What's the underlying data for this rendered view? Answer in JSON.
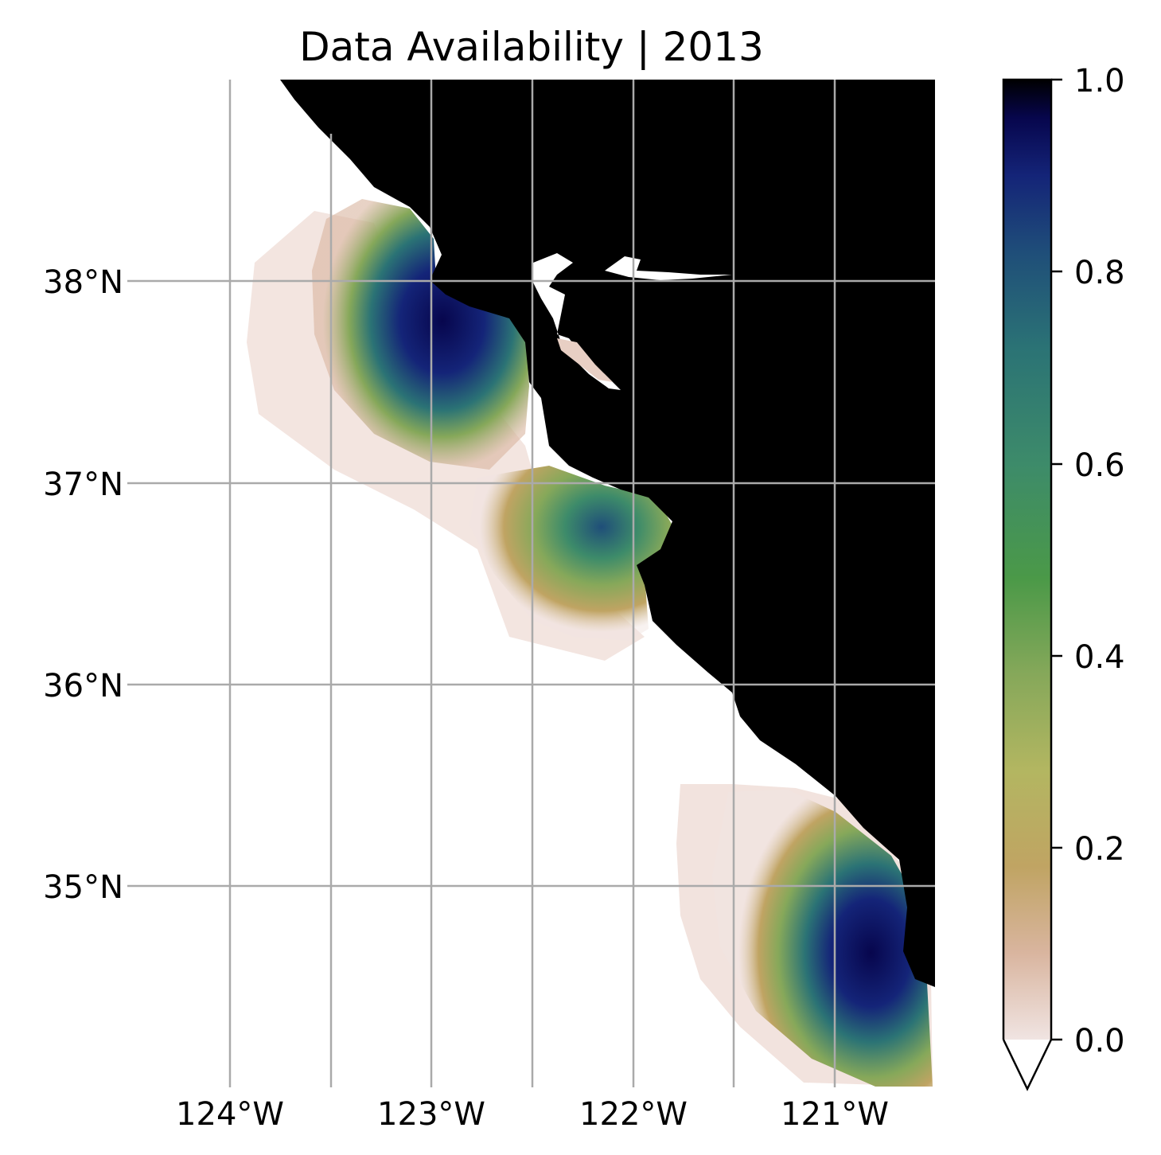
{
  "title": "Data Availability | 2013",
  "map": {
    "lon_range": [
      -124.5,
      -120.5
    ],
    "lat_range": [
      34.2,
      38.5
    ],
    "lon_ticks": [
      {
        "value": -124,
        "label": "124°W"
      },
      {
        "value": -123,
        "label": "123°W"
      },
      {
        "value": -122,
        "label": "122°W"
      },
      {
        "value": -121,
        "label": "121°W"
      }
    ],
    "lat_ticks": [
      {
        "value": 38,
        "label": "38°N"
      },
      {
        "value": 37,
        "label": "37°N"
      },
      {
        "value": 36,
        "label": "36°N"
      },
      {
        "value": 35,
        "label": "35°N"
      }
    ],
    "gridlines": true,
    "land_color": "#000000",
    "gridline_color": "#aaaaaa"
  },
  "colorbar": {
    "range": [
      0.0,
      1.0
    ],
    "ticks": [
      {
        "value": 0.0,
        "label": "0.0"
      },
      {
        "value": 0.2,
        "label": "0.2"
      },
      {
        "value": 0.4,
        "label": "0.4"
      },
      {
        "value": 0.6,
        "label": "0.6"
      },
      {
        "value": 0.8,
        "label": "0.8"
      },
      {
        "value": 1.0,
        "label": "1.0"
      }
    ],
    "extend": "min",
    "colors": [
      "#f0e4e2",
      "#d9b59f",
      "#c0a463",
      "#b3b661",
      "#86a85a",
      "#4b9948",
      "#3d8b6a",
      "#2b7375",
      "#1f4e79",
      "#142478",
      "#07064d",
      "#000000"
    ]
  }
}
